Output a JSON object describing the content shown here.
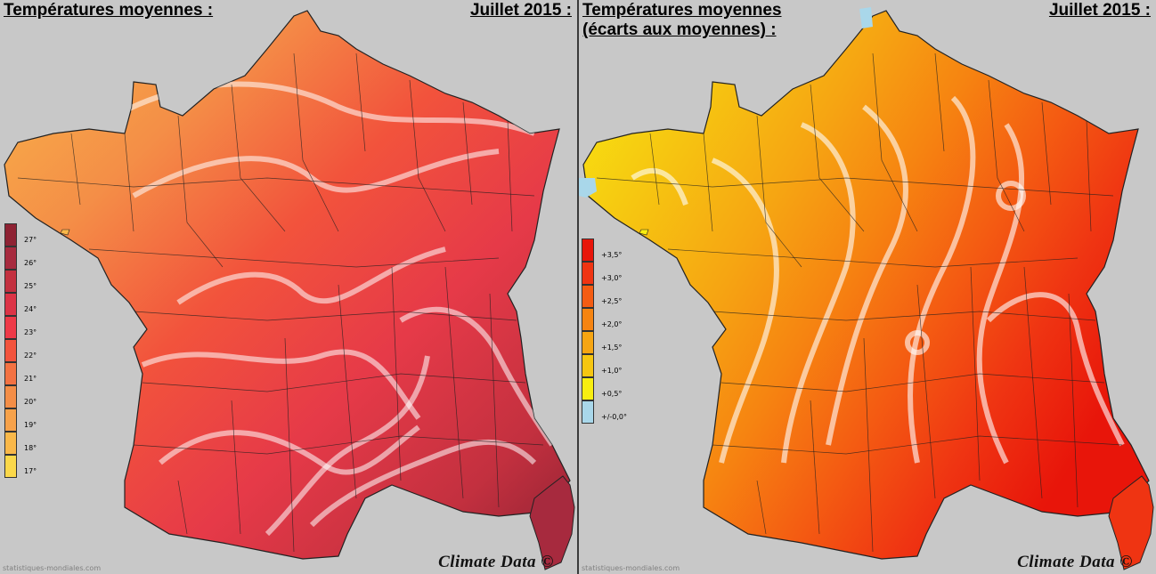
{
  "left_panel": {
    "title": "Températures moyennes :",
    "date": "Juillet 2015 :",
    "credit": "Climate Data ©",
    "source": "statistiques-mondiales.com",
    "legend": [
      {
        "label": "27°",
        "color": "#8e2233"
      },
      {
        "label": "26°",
        "color": "#a72a3e"
      },
      {
        "label": "25°",
        "color": "#c3303f"
      },
      {
        "label": "24°",
        "color": "#dc3446"
      },
      {
        "label": "23°",
        "color": "#ee3a48"
      },
      {
        "label": "22°",
        "color": "#f2533c"
      },
      {
        "label": "21°",
        "color": "#f37242"
      },
      {
        "label": "20°",
        "color": "#f48e47"
      },
      {
        "label": "19°",
        "color": "#f7a24a"
      },
      {
        "label": "18°",
        "color": "#f9b849"
      },
      {
        "label": "17°",
        "color": "#fbd84a"
      }
    ]
  },
  "right_panel": {
    "title_line1": "Températures moyennes",
    "title_line2": "(écarts aux moyennes) :",
    "date": "Juillet 2015 :",
    "credit": "Climate Data ©",
    "source": "statistiques-mondiales.com",
    "legend": [
      {
        "label": "+3,5°",
        "color": "#e8150a"
      },
      {
        "label": "+3,0°",
        "color": "#ef3412"
      },
      {
        "label": "+2,5°",
        "color": "#f45c12"
      },
      {
        "label": "+2,0°",
        "color": "#f68411"
      },
      {
        "label": "+1,5°",
        "color": "#f6a512"
      },
      {
        "label": "+1,0°",
        "color": "#f6c611"
      },
      {
        "label": "+0,5°",
        "color": "#f8ee10"
      },
      {
        "label": "+/-0,0°",
        "color": "#a9d7ea"
      }
    ]
  }
}
